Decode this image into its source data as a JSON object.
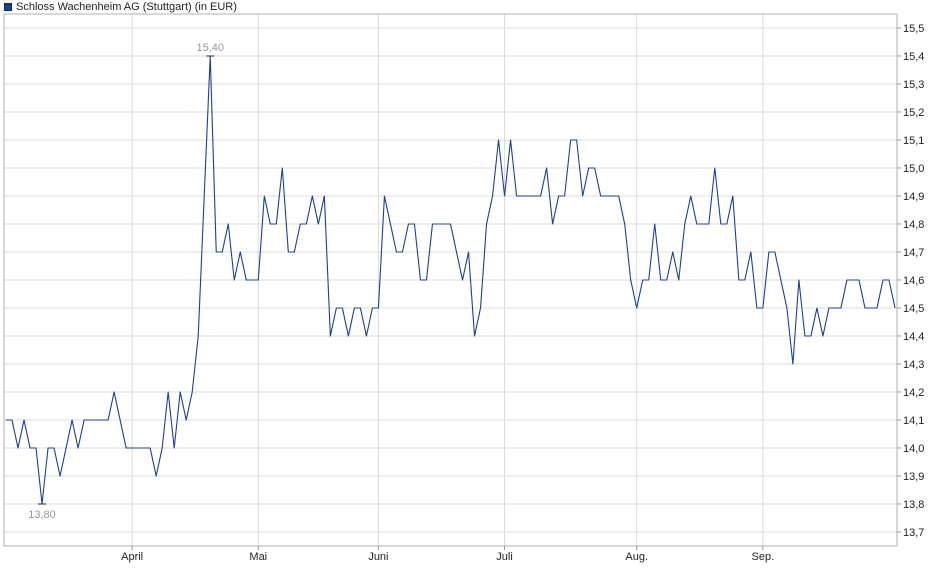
{
  "chart_data": {
    "type": "line",
    "title": "Schloss Wachenheim AG (Stuttgart) (in EUR)",
    "x_tick_labels": [
      "April",
      "Mai",
      "Juni",
      "Juli",
      "Aug.",
      "Sep."
    ],
    "y_tick_labels": [
      "13,7",
      "13,8",
      "13,9",
      "14,0",
      "14,1",
      "14,2",
      "14,3",
      "14,4",
      "14,5",
      "14,6",
      "14,7",
      "14,8",
      "14,9",
      "15,0",
      "15,1",
      "15,2",
      "15,3",
      "15,4",
      "15,5"
    ],
    "ylim": [
      13.65,
      15.55
    ],
    "grid": true,
    "legend_position": "top-left",
    "line_color": "#1c3f95",
    "annotations": [
      {
        "label": "15,40",
        "x_index": 34,
        "value": 15.4
      },
      {
        "label": "13,80",
        "x_index": 6,
        "value": 13.8
      }
    ],
    "series": [
      {
        "values": [
          14.1,
          14.1,
          14.0,
          14.1,
          14.0,
          14.0,
          13.8,
          14.0,
          14.0,
          13.9,
          14.0,
          14.1,
          14.0,
          14.1,
          14.1,
          14.1,
          14.1,
          14.1,
          14.2,
          14.1,
          14.0,
          14.0,
          14.0,
          14.0,
          14.0,
          13.9,
          14.0,
          14.2,
          14.0,
          14.2,
          14.1,
          14.2,
          14.4,
          14.9,
          15.4,
          14.7,
          14.7,
          14.8,
          14.6,
          14.7,
          14.6,
          14.6,
          14.6,
          14.9,
          14.8,
          14.8,
          15.0,
          14.7,
          14.7,
          14.8,
          14.8,
          14.9,
          14.8,
          14.9,
          14.4,
          14.5,
          14.5,
          14.4,
          14.5,
          14.5,
          14.4,
          14.5,
          14.5,
          14.9,
          14.8,
          14.7,
          14.7,
          14.8,
          14.8,
          14.6,
          14.6,
          14.8,
          14.8,
          14.8,
          14.8,
          14.7,
          14.6,
          14.7,
          14.4,
          14.5,
          14.8,
          14.9,
          15.1,
          14.9,
          15.1,
          14.9,
          14.9,
          14.9,
          14.9,
          14.9,
          15.0,
          14.8,
          14.9,
          14.9,
          15.1,
          15.1,
          14.9,
          15.0,
          15.0,
          14.9,
          14.9,
          14.9,
          14.9,
          14.8,
          14.6,
          14.5,
          14.6,
          14.6,
          14.8,
          14.6,
          14.6,
          14.7,
          14.6,
          14.8,
          14.9,
          14.8,
          14.8,
          14.8,
          15.0,
          14.8,
          14.8,
          14.9,
          14.6,
          14.6,
          14.7,
          14.5,
          14.5,
          14.7,
          14.7,
          14.6,
          14.5,
          14.3,
          14.6,
          14.4,
          14.4,
          14.5,
          14.4,
          14.5,
          14.5,
          14.5,
          14.6,
          14.6,
          14.6,
          14.5,
          14.5,
          14.5,
          14.6,
          14.6,
          14.5
        ]
      }
    ]
  }
}
